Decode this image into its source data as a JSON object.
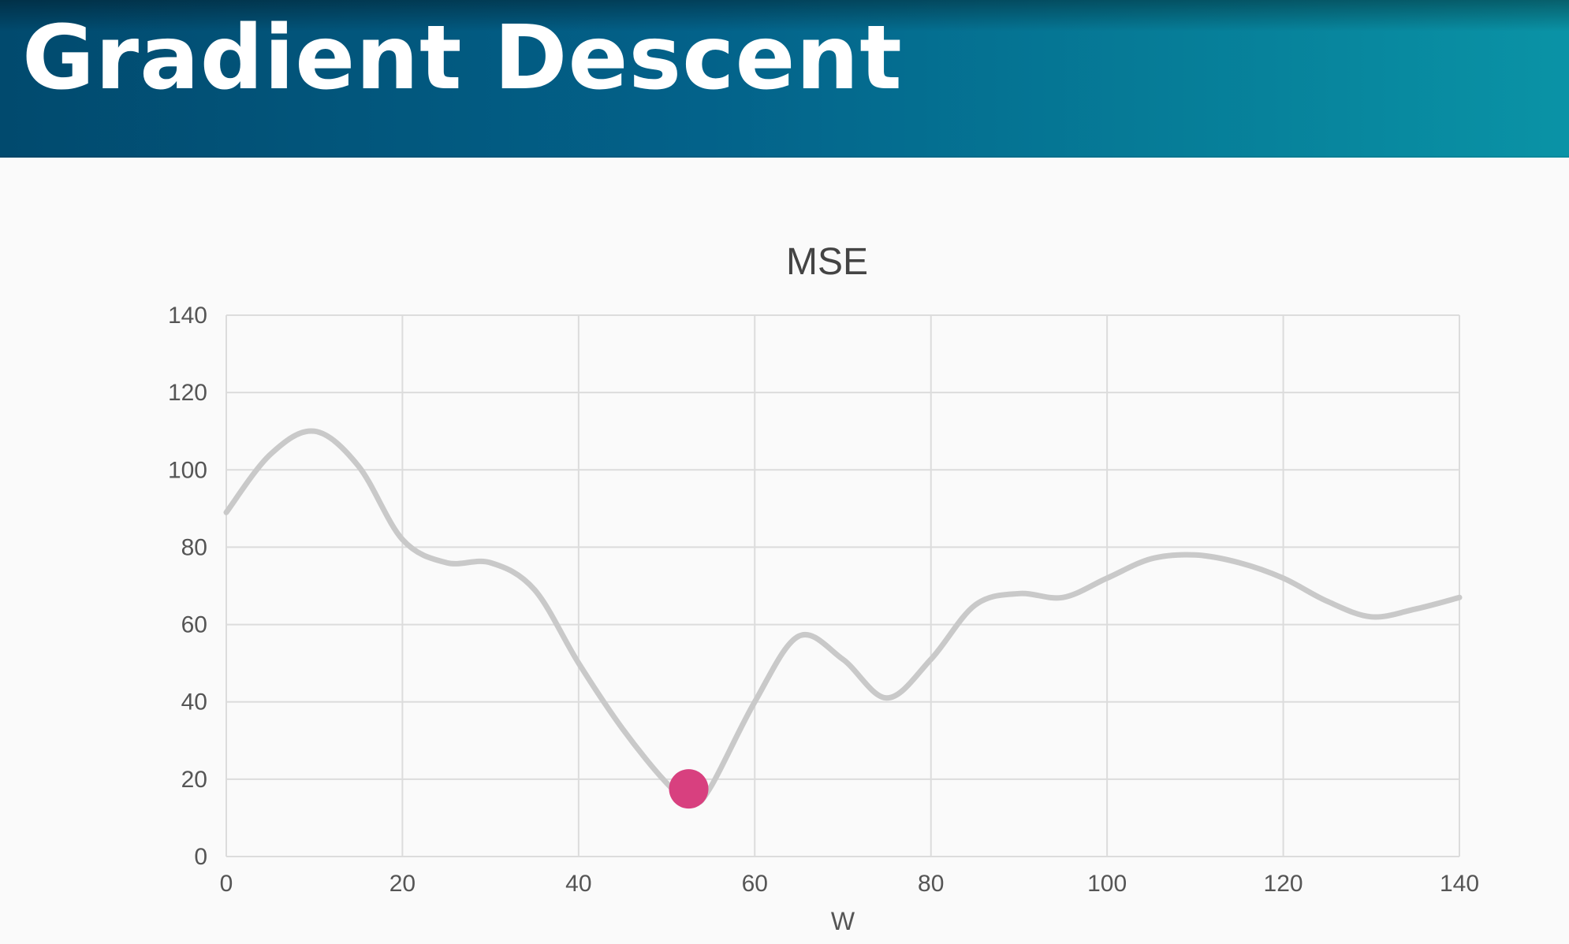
{
  "header": {
    "title": "Gradient Descent"
  },
  "colors": {
    "header_start": "#014a6e",
    "header_end": "#0a93a6",
    "line": "#c9c9c9",
    "grid": "#dcdcdc",
    "marker": "#d8407f",
    "background": "#fafafa"
  },
  "chart_data": {
    "type": "line",
    "title": "MSE",
    "xlabel": "W",
    "ylabel": "",
    "xlim": [
      0,
      140
    ],
    "ylim": [
      0,
      140
    ],
    "x_ticks": [
      0,
      20,
      40,
      60,
      80,
      100,
      120,
      140
    ],
    "y_ticks": [
      0,
      20,
      40,
      60,
      80,
      100,
      120,
      140
    ],
    "grid": true,
    "legend": "none",
    "series": [
      {
        "x": [
          0,
          5,
          10,
          15,
          20,
          25,
          30,
          35,
          40,
          45,
          50,
          53,
          55,
          60,
          65,
          70,
          75,
          80,
          85,
          90,
          95,
          100,
          105,
          110,
          115,
          120,
          125,
          130,
          135,
          140
        ],
        "y": [
          89,
          104,
          110,
          101,
          82,
          76,
          76,
          69,
          50,
          33,
          19,
          14,
          18,
          40,
          57,
          51,
          41,
          51,
          65,
          68,
          67,
          72,
          77,
          78,
          76,
          72,
          66,
          62,
          64,
          67
        ],
        "color": "#c9c9c9"
      }
    ],
    "highlight_point": {
      "x": 52.5,
      "y": 17.5,
      "color": "#d8407f"
    }
  }
}
